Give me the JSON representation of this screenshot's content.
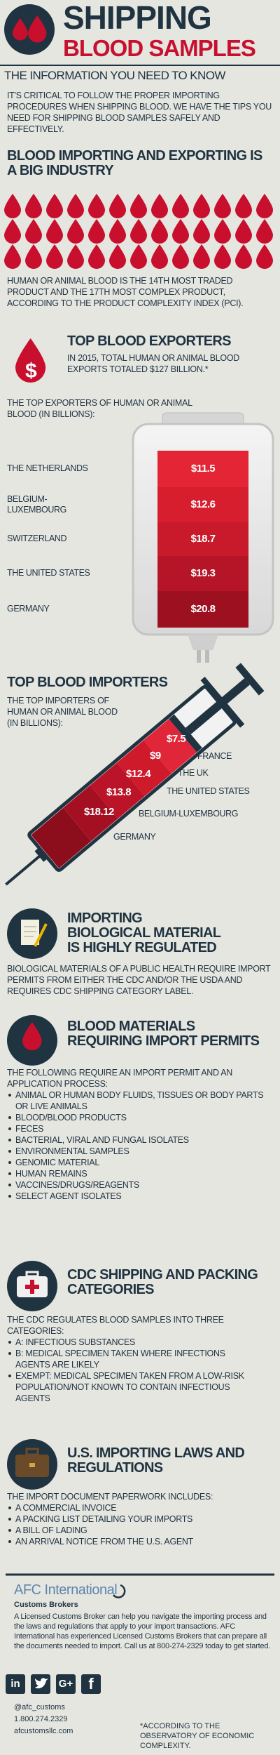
{
  "header": {
    "title": "SHIPPING",
    "subtitle": "BLOOD SAMPLES",
    "tagline": "THE INFORMATION YOU NEED TO KNOW"
  },
  "intro": "IT'S CRITICAL TO FOLLOW THE PROPER IMPORTING PROCEDURES WHEN SHIPPING BLOOD. WE HAVE THE TIPS YOU NEED FOR SHIPPING BLOOD SAMPLES SAFELY AND EFFECTIVELY.",
  "industry": {
    "heading": "BLOOD IMPORTING AND EXPORTING IS A BIG INDUSTRY",
    "text": "HUMAN OR ANIMAL BLOOD IS THE 14TH MOST TRADED PRODUCT AND THE 17TH MOST COMPLEX PRODUCT, ACCORDING TO THE PRODUCT COMPLEXITY INDEX (PCI)."
  },
  "exporters": {
    "icon": "$",
    "heading": "TOP BLOOD EXPORTERS",
    "summary": "IN 2015, TOTAL HUMAN OR ANIMAL BLOOD EXPORTS TOTALED $127 BILLION.*",
    "label": "THE TOP EXPORTERS OF HUMAN OR ANIMAL BLOOD (IN BILLIONS):",
    "rows": [
      {
        "country": "THE NETHERLANDS",
        "value": "$11.5"
      },
      {
        "country": "BELGIUM-LUXEMBOURG",
        "value": "$12.6"
      },
      {
        "country": "SWITZERLAND",
        "value": "$18.7"
      },
      {
        "country": "THE UNITED STATES",
        "value": "$19.3"
      },
      {
        "country": "GERMANY",
        "value": "$20.8"
      }
    ]
  },
  "importers": {
    "heading": "TOP BLOOD IMPORTERS",
    "label": "THE TOP IMPORTERS OF HUMAN OR ANIMAL BLOOD (IN BILLIONS):",
    "rows": [
      {
        "country": "FRANCE",
        "value": "$7.5"
      },
      {
        "country": "THE UK",
        "value": "$9"
      },
      {
        "country": "THE UNITED STATES",
        "value": "$12.4"
      },
      {
        "country": "BELGIUM-LUXEMBOURG",
        "value": "$13.8"
      },
      {
        "country": "GERMANY",
        "value": "$18.12"
      }
    ]
  },
  "regulated": {
    "heading": "IMPORTING BIOLOGICAL MATERIAL IS HIGHLY REGULATED",
    "text": "BIOLOGICAL MATERIALS OF A PUBLIC HEALTH REQUIRE IMPORT PERMITS FROM EITHER THE CDC AND/OR THE USDA AND REQUIRES CDC SHIPPING CATEGORY LABEL."
  },
  "permits": {
    "heading": "BLOOD MATERIALS REQUIRING IMPORT PERMITS",
    "text": "THE FOLLOWING REQUIRE AN IMPORT PERMIT AND AN APPLICATION PROCESS:",
    "items": [
      "ANIMAL OR HUMAN BODY FLUIDS, TISSUES OR BODY PARTS OR LIVE ANIMALS",
      "BLOOD/BLOOD PRODUCTS",
      "FECES",
      "BACTERIAL, VIRAL AND FUNGAL ISOLATES",
      "ENVIRONMENTAL SAMPLES",
      "GENOMIC MATERIAL",
      "HUMAN REMAINS",
      "VACCINES/DRUGS/REAGENTS",
      "SELECT AGENT ISOLATES"
    ]
  },
  "cdc": {
    "heading": "CDC SHIPPING AND PACKING CATEGORIES",
    "text": "THE CDC REGULATES BLOOD SAMPLES INTO THREE CATEGORIES:",
    "items": [
      "A: INFECTIOUS SUBSTANCES",
      "B: MEDICAL SPECIMEN TAKEN WHERE INFECTIONS AGENTS ARE LIKELY",
      "EXEMPT: MEDICAL SPECIMEN TAKEN FROM A LOW-RISK POPULATION/NOT KNOWN TO CONTAIN INFECTIOUS AGENTS"
    ]
  },
  "laws": {
    "heading": "U.S. IMPORTING LAWS AND REGULATIONS",
    "text": "THE IMPORT DOCUMENT PAPERWORK INCLUDES:",
    "items": [
      "A COMMERCIAL INVOICE",
      "A PACKING LIST DETAILING YOUR IMPORTS",
      "A BILL OF LADING",
      "AN ARRIVAL NOTICE FROM THE U.S. AGENT"
    ]
  },
  "footer": {
    "company": "AFC International",
    "tagline": "Customs Brokers",
    "text": "A Licensed Customs Broker can help you navigate the importing process and the laws and regulations that apply to your import transactions. AFC International has experienced Licensed Customs Brokers that can prepare all the documents needed to import. Call us at 800-274-2329 today to get started.",
    "social": [
      "in",
      "G+",
      "f"
    ],
    "contacts": [
      "@afc_customs",
      "1.800.274.2329",
      "afcustomsllc.com"
    ],
    "footnote": "*ACCORDING TO THE OBSERVATORY OF ECONOMIC COMPLEXITY."
  }
}
